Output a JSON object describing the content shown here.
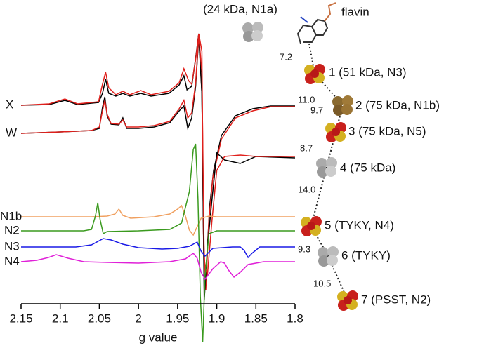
{
  "chart_data": {
    "type": "line",
    "x_label": "g value",
    "xlim": [
      2.15,
      1.8
    ],
    "xticks": [
      2.15,
      2.1,
      2.05,
      2,
      1.95,
      1.9,
      1.85,
      1.8
    ],
    "ylim": [
      -63,
      433
    ],
    "series": [
      {
        "name": "X",
        "color": "#000000",
        "x": [
          2.15,
          2.114,
          2.094,
          2.078,
          2.051,
          2.046,
          2.042,
          2.038,
          2.029,
          2.02,
          2.011,
          1.997,
          1.984,
          1.961,
          1.948,
          1.942,
          1.938,
          1.932,
          1.927,
          1.923,
          1.919,
          1.916,
          1.913,
          1.909,
          1.904,
          1.894,
          1.876,
          1.854,
          1.831,
          1.8
        ],
        "values": [
          283,
          284,
          290,
          284,
          287,
          300,
          320,
          300,
          296,
          300,
          296,
          300,
          296,
          300,
          312,
          325,
          305,
          310,
          350,
          385,
          300,
          20,
          60,
          140,
          190,
          240,
          268,
          278,
          282,
          282
        ]
      },
      {
        "color": "#e0201c",
        "x": [
          2.15,
          2.114,
          2.094,
          2.078,
          2.051,
          2.046,
          2.042,
          2.038,
          2.029,
          2.02,
          2.011,
          1.997,
          1.984,
          1.961,
          1.948,
          1.942,
          1.936,
          1.932,
          1.927,
          1.923,
          1.919,
          1.917,
          1.914,
          1.91,
          1.905,
          1.894,
          1.876,
          1.854,
          1.831,
          1.8
        ],
        "values": [
          283,
          285,
          292,
          285,
          288,
          313,
          330,
          308,
          298,
          303,
          298,
          304,
          298,
          303,
          315,
          335,
          318,
          313,
          348,
          385,
          360,
          100,
          20,
          120,
          180,
          235,
          265,
          275,
          281,
          281
        ]
      },
      {
        "name": "W",
        "color": "#000000",
        "x": [
          2.15,
          2.1,
          2.06,
          2.05,
          2.046,
          2.043,
          2.04,
          2.035,
          2.025,
          2.02,
          2.015,
          2.0,
          1.98,
          1.96,
          1.948,
          1.942,
          1.937,
          1.932,
          1.927,
          1.923,
          1.919,
          1.916,
          1.912,
          1.906,
          1.9,
          1.89,
          1.87,
          1.85,
          1.8
        ],
        "values": [
          243,
          245,
          247,
          250,
          280,
          295,
          268,
          256,
          255,
          265,
          250,
          250,
          252,
          258,
          275,
          282,
          250,
          265,
          310,
          380,
          300,
          5,
          80,
          150,
          215,
          205,
          200,
          210,
          208
        ]
      },
      {
        "color": "#e0201c",
        "x": [
          2.15,
          2.1,
          2.06,
          2.05,
          2.046,
          2.043,
          2.04,
          2.035,
          2.025,
          2.02,
          2.015,
          2.0,
          1.98,
          1.96,
          1.948,
          1.942,
          1.937,
          1.932,
          1.927,
          1.923,
          1.919,
          1.916,
          1.912,
          1.906,
          1.9,
          1.89,
          1.87,
          1.85,
          1.8
        ],
        "values": [
          243,
          245,
          247,
          252,
          275,
          290,
          270,
          257,
          256,
          262,
          252,
          252,
          254,
          260,
          278,
          290,
          265,
          272,
          315,
          382,
          330,
          60,
          40,
          120,
          190,
          210,
          212,
          210,
          210
        ]
      },
      {
        "name": "N1b",
        "color": "#f0a060",
        "x": [
          2.15,
          2.06,
          2.04,
          2.03,
          2.025,
          2.02,
          2.01,
          1.98,
          1.96,
          1.95,
          1.945,
          1.94,
          1.935,
          1.93,
          1.925,
          1.92,
          1.91,
          1.9,
          1.85,
          1.8
        ],
        "values": [
          124,
          124,
          125,
          128,
          135,
          126,
          122,
          124,
          128,
          135,
          140,
          125,
          105,
          98,
          110,
          122,
          125,
          124,
          124,
          124
        ]
      },
      {
        "name": "N2",
        "color": "#3a9a1e",
        "x": [
          2.15,
          2.07,
          2.06,
          2.055,
          2.052,
          2.049,
          2.045,
          2.04,
          2.0,
          1.96,
          1.945,
          1.935,
          1.93,
          1.927,
          1.924,
          1.921,
          1.918,
          1.915,
          1.91,
          1.9,
          1.85,
          1.8
        ],
        "values": [
          104,
          104,
          106,
          125,
          144,
          120,
          100,
          103,
          104,
          106,
          115,
          160,
          220,
          228,
          150,
          10,
          -55,
          40,
          100,
          104,
          104,
          104
        ]
      },
      {
        "name": "N3",
        "color": "#1a1ae6",
        "x": [
          2.15,
          2.08,
          2.06,
          2.045,
          2.035,
          2.02,
          2.0,
          1.97,
          1.95,
          1.935,
          1.925,
          1.92,
          1.915,
          1.905,
          1.88,
          1.87,
          1.865,
          1.86,
          1.855,
          1.845,
          1.8
        ],
        "values": [
          81,
          81,
          84,
          93,
          91,
          85,
          80,
          78,
          79,
          82,
          88,
          75,
          68,
          79,
          81,
          81,
          76,
          66,
          72,
          81,
          81
        ]
      },
      {
        "name": "N4",
        "color": "#e020d8",
        "x": [
          2.15,
          2.13,
          2.115,
          2.105,
          2.09,
          2.07,
          2.04,
          2.0,
          1.96,
          1.94,
          1.93,
          1.925,
          1.92,
          1.915,
          1.905,
          1.895,
          1.89,
          1.885,
          1.878,
          1.87,
          1.86,
          1.84,
          1.8
        ],
        "values": [
          60,
          62,
          66,
          70,
          65,
          60,
          59,
          58,
          60,
          64,
          72,
          65,
          45,
          35,
          50,
          60,
          58,
          48,
          38,
          45,
          56,
          60,
          60
        ]
      }
    ]
  },
  "diagram": {
    "n1a_label": "(24 kDa, N1a)",
    "flavin_label": "flavin",
    "clusters": [
      "1 (51 kDa, N3)",
      "2 (75 kDa, N1b)",
      "3 (75 kDa, N5)",
      "4 (75 kDa)",
      "5 (TYKY, N4)",
      "6 (TYKY)",
      "7 (PSST, N2)"
    ],
    "distances": [
      7.2,
      11.0,
      9.7,
      8.7,
      14.0,
      9.3,
      10.5
    ]
  }
}
